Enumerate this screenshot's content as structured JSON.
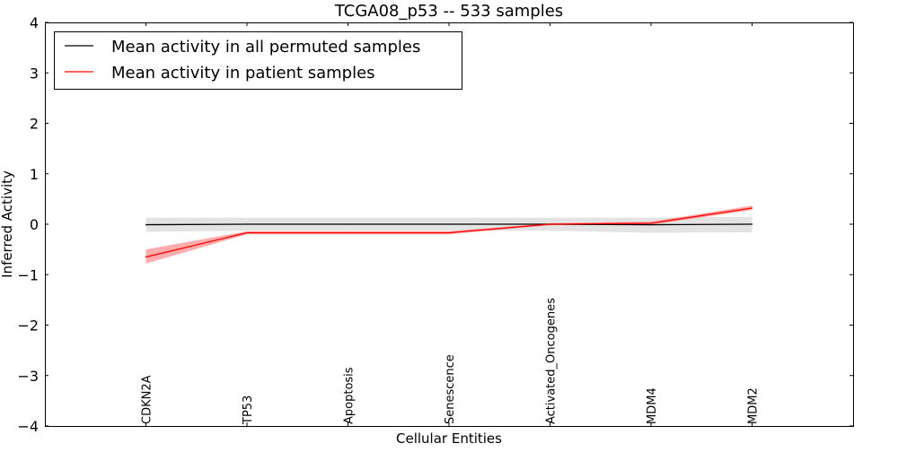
{
  "chart_data": {
    "type": "line",
    "title": "TCGA08_p53 -- 533 samples",
    "xlabel": "Cellular Entities",
    "ylabel": "Inferred Activity",
    "ylim": [
      -4,
      4
    ],
    "xlim": [
      -1,
      7
    ],
    "yticks": [
      -4,
      -3,
      -2,
      -1,
      0,
      1,
      2,
      3,
      4
    ],
    "ytick_labels": [
      "−4",
      "−3",
      "−2",
      "−1",
      "0",
      "1",
      "2",
      "3",
      "4"
    ],
    "categories": [
      "CDKN2A",
      "TP53",
      "Apoptosis",
      "Senescence",
      "Activated_Oncogenes",
      "MDM4",
      "MDM2"
    ],
    "legend_placement": "top-left",
    "series": [
      {
        "name": "Mean activity in all permuted samples",
        "color": "#000000",
        "band_color": "#cccccc",
        "values": [
          -0.01,
          0.0,
          0.0,
          0.0,
          0.0,
          -0.01,
          0.0
        ],
        "lower": [
          -0.15,
          -0.13,
          -0.13,
          -0.13,
          -0.13,
          -0.17,
          -0.16
        ],
        "upper": [
          0.13,
          0.13,
          0.13,
          0.13,
          0.13,
          0.13,
          0.15
        ]
      },
      {
        "name": "Mean activity in patient samples",
        "color": "#ff0000",
        "band_color": "#ff8080",
        "values": [
          -0.65,
          -0.17,
          -0.17,
          -0.17,
          0.0,
          0.02,
          0.32
        ],
        "lower": [
          -0.78,
          -0.2,
          -0.2,
          -0.2,
          -0.02,
          -0.01,
          0.28
        ],
        "upper": [
          -0.5,
          -0.14,
          -0.14,
          -0.14,
          0.02,
          0.05,
          0.37
        ]
      }
    ]
  }
}
